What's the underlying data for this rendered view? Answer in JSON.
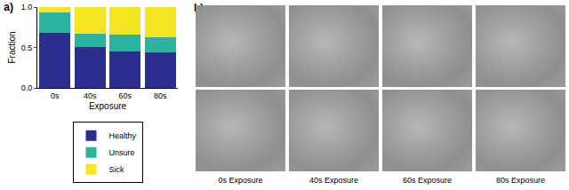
{
  "chart_data": {
    "type": "bar",
    "title": "a)",
    "categories": [
      "0s",
      "40s",
      "60s",
      "80s"
    ],
    "series": [
      {
        "name": "Healthy",
        "color": "#2b2d8f",
        "values": [
          0.68,
          0.51,
          0.45,
          0.44
        ]
      },
      {
        "name": "Unsure",
        "color": "#2bb39e",
        "values": [
          0.25,
          0.16,
          0.21,
          0.19
        ]
      },
      {
        "name": "Sick",
        "color": "#f6e620",
        "values": [
          0.07,
          0.33,
          0.34,
          0.37
        ]
      }
    ],
    "x_label": "Exposure",
    "y_label": "Fraction",
    "ylim": [
      0,
      1
    ],
    "yticks": [
      {
        "value": 0,
        "label": "0.0"
      },
      {
        "value": 0.5,
        "label": "0.5"
      },
      {
        "value": 1,
        "label": "1.0"
      }
    ],
    "stacked": true,
    "grid": false,
    "legend": "bottom"
  },
  "panel_b": {
    "label": "b)",
    "captions": [
      "0s Exposure",
      "40s Exposure",
      "60s Exposure",
      "80s Exposure"
    ]
  }
}
